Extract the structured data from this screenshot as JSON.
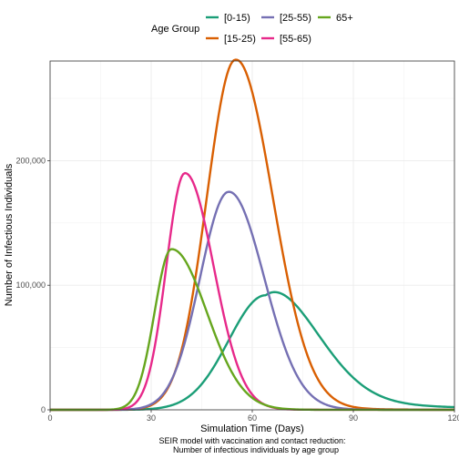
{
  "chart_data": {
    "type": "line",
    "xlabel": "Simulation Time (Days)",
    "ylabel": "Number of Infectious Individuals",
    "caption_line1": "SEIR model with vaccination and contact reduction:",
    "caption_line2": "Number of infectious individuals by age group",
    "legend_title": "Age Group",
    "legend_position": "top",
    "grid": true,
    "xlim": [
      0,
      120
    ],
    "ylim": [
      0,
      280000
    ],
    "x_ticks": [
      0,
      30,
      60,
      90,
      120
    ],
    "x_tick_labels": [
      "0",
      "30",
      "60",
      "90",
      "120"
    ],
    "y_ticks": [
      0,
      100000,
      200000
    ],
    "y_tick_labels": [
      "0",
      "100,000",
      "200,000"
    ],
    "series": [
      {
        "name": "[0-15)",
        "color": "#1b9e77",
        "peak_x": 64,
        "peak_y": 92000,
        "sigma_left": 11,
        "sigma_right": 15,
        "tail": 0.13,
        "tail_tau": 32
      },
      {
        "name": "[15-25)",
        "color": "#d95f02",
        "peak_x": 55,
        "peak_y": 281000,
        "sigma_left": 8.5,
        "sigma_right": 11,
        "tail": 0.012,
        "tail_tau": 20
      },
      {
        "name": "[25-55)",
        "color": "#7570b3",
        "peak_x": 53,
        "peak_y": 175000,
        "sigma_left": 8.5,
        "sigma_right": 10.5,
        "tail": 0.006,
        "tail_tau": 18
      },
      {
        "name": "[55-65)",
        "color": "#e7298a",
        "peak_x": 40,
        "peak_y": 190000,
        "sigma_left": 5.5,
        "sigma_right": 8.5,
        "tail": 0.006,
        "tail_tau": 15
      },
      {
        "name": "65+",
        "color": "#66a61e",
        "peak_x": 36,
        "peak_y": 129000,
        "sigma_left": 5.0,
        "sigma_right": 10.5,
        "tail": 0.005,
        "tail_tau": 15
      }
    ]
  }
}
